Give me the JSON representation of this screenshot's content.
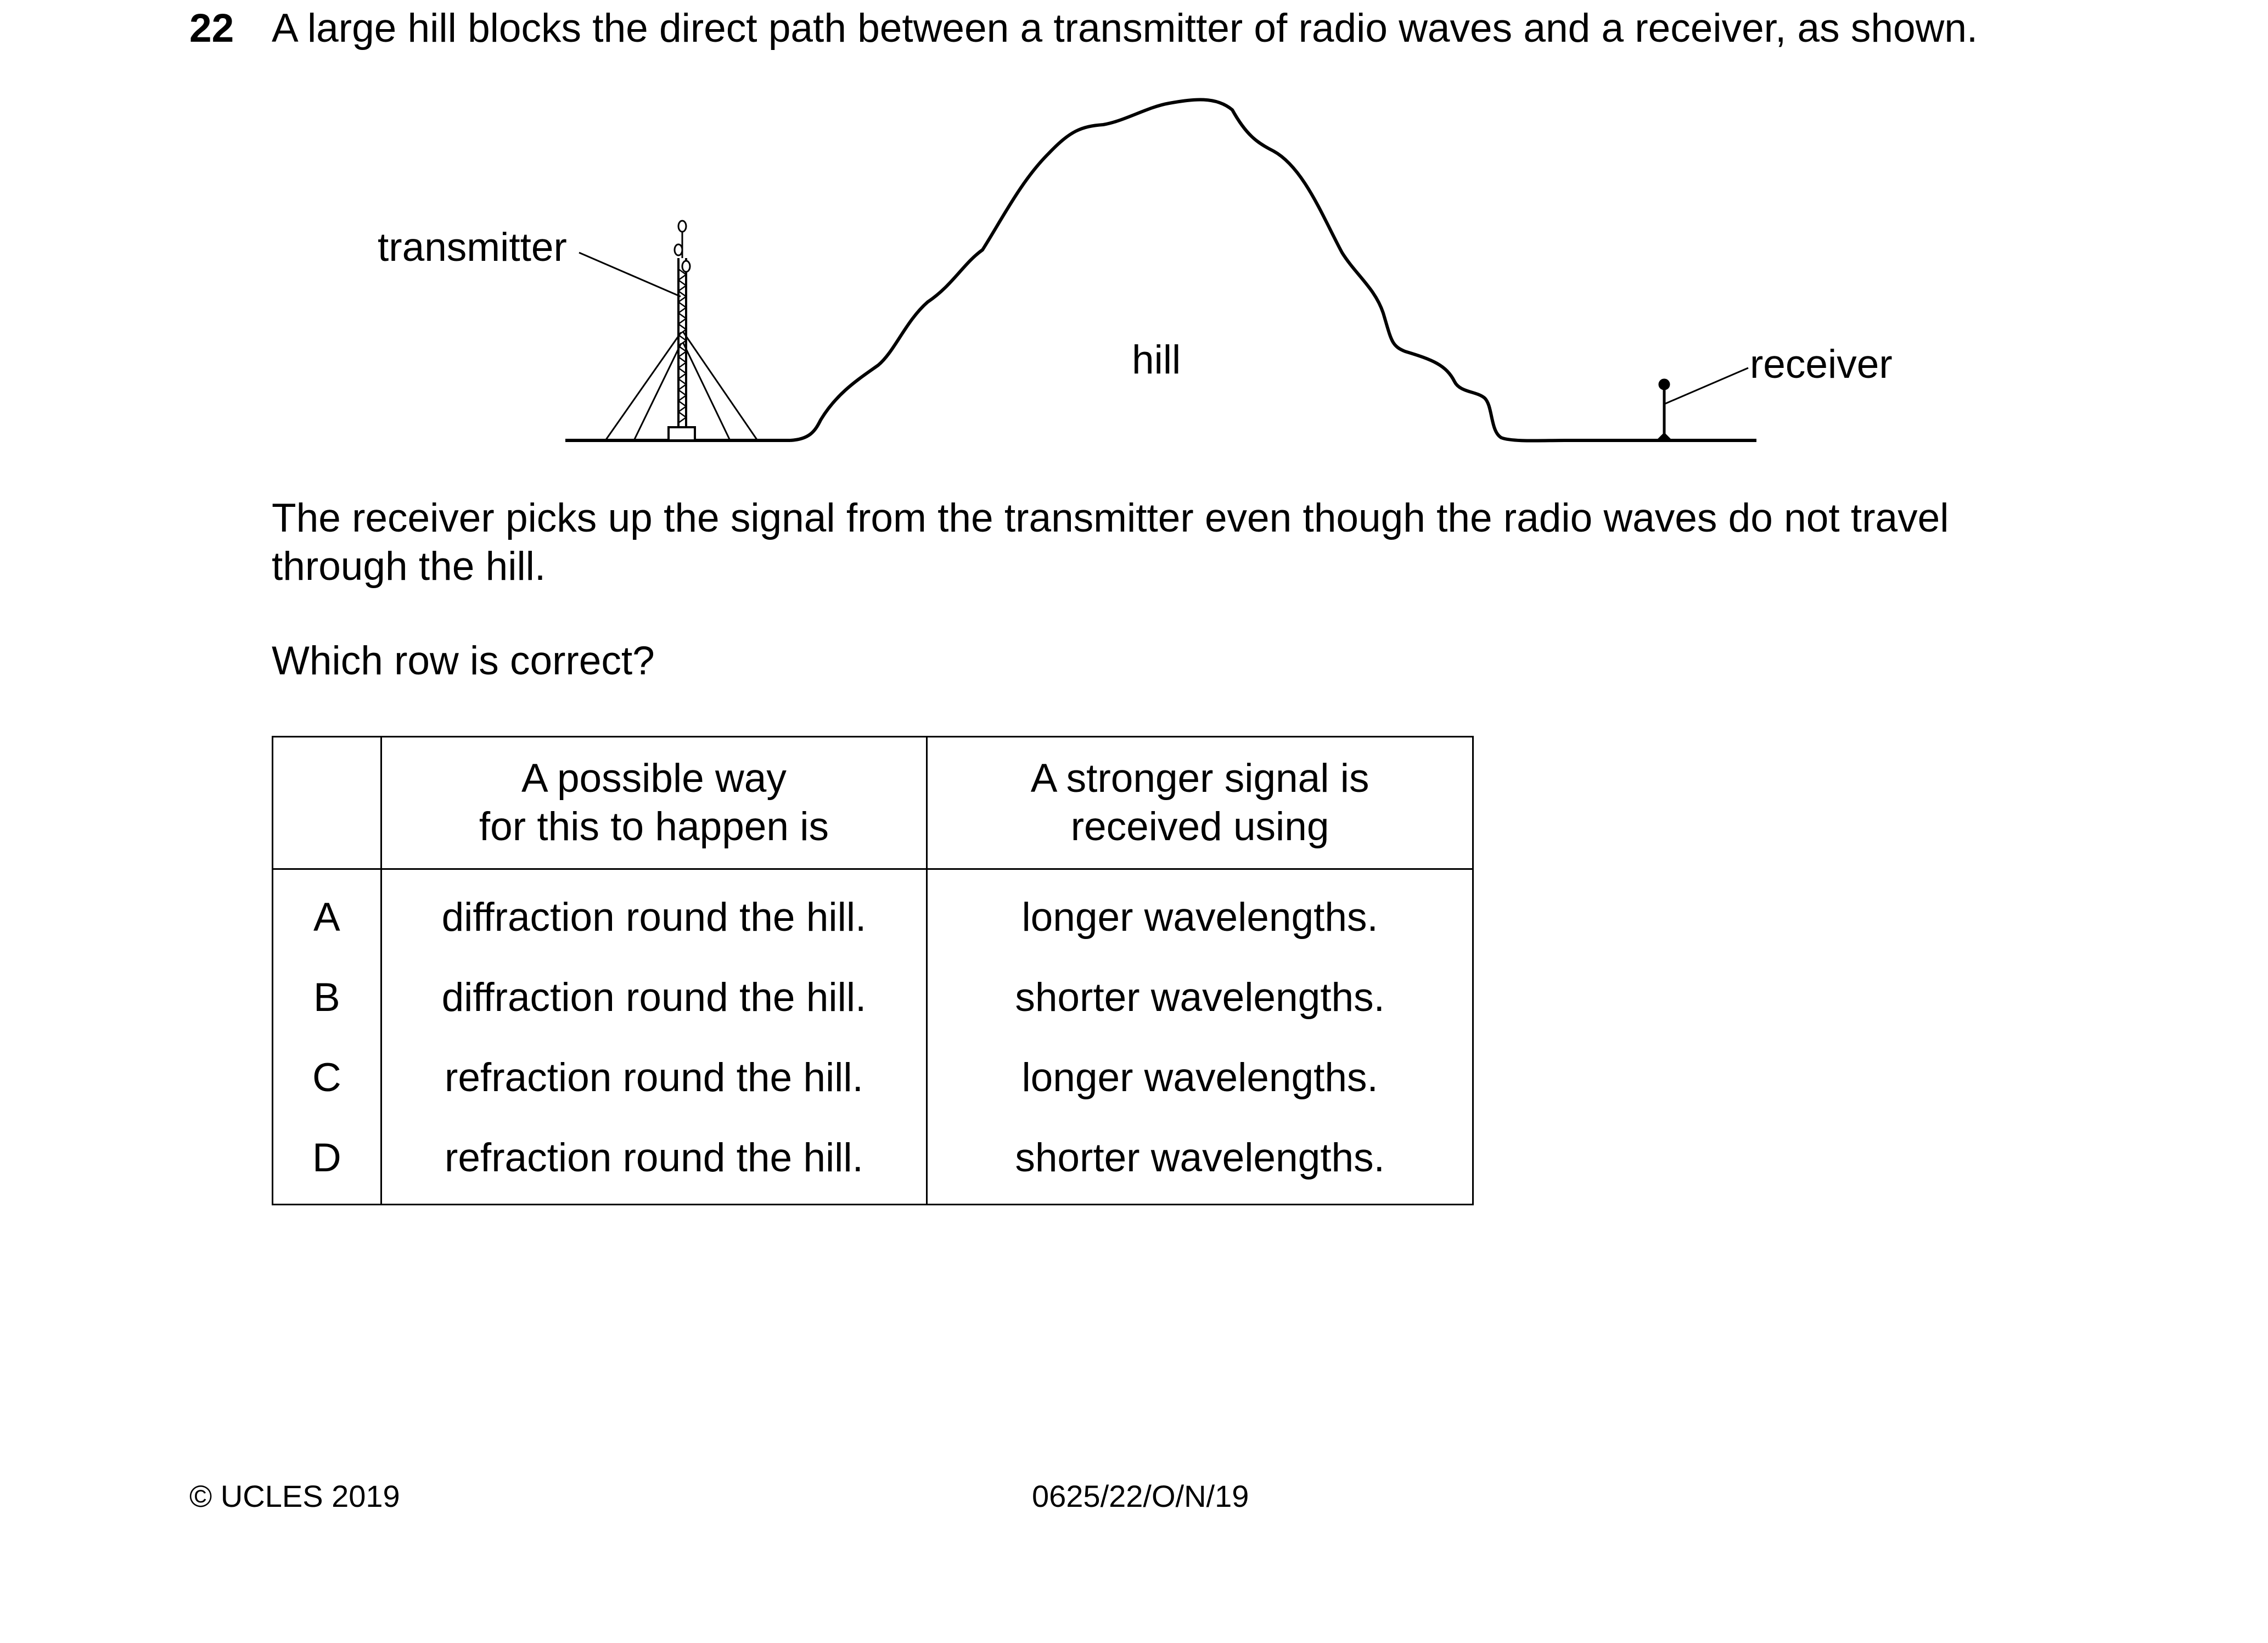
{
  "question": {
    "number": "22",
    "text": "A large hill blocks the direct path between a transmitter of radio waves and a receiver, as shown."
  },
  "diagram": {
    "labels": {
      "transmitter": "transmitter",
      "hill": "hill",
      "receiver": "receiver"
    }
  },
  "body": {
    "paragraph1": "The receiver picks up the signal from the transmitter even though the radio waves do not travel through the hill.",
    "paragraph2": "Which row is correct?"
  },
  "table": {
    "headers": {
      "blank": "",
      "way_line1": "A possible way",
      "way_line2": "for this to happen is",
      "signal_line1": "A stronger signal is",
      "signal_line2": "received using"
    },
    "rows": [
      {
        "letter": "A",
        "way": "diffraction round the hill.",
        "signal": "longer wavelengths."
      },
      {
        "letter": "B",
        "way": "diffraction round the hill.",
        "signal": "shorter wavelengths."
      },
      {
        "letter": "C",
        "way": "refraction round the hill.",
        "signal": "longer wavelengths."
      },
      {
        "letter": "D",
        "way": "refraction round the hill.",
        "signal": "shorter wavelengths."
      }
    ]
  },
  "footer": {
    "copyright": "© UCLES 2019",
    "code": "0625/22/O/N/19"
  }
}
